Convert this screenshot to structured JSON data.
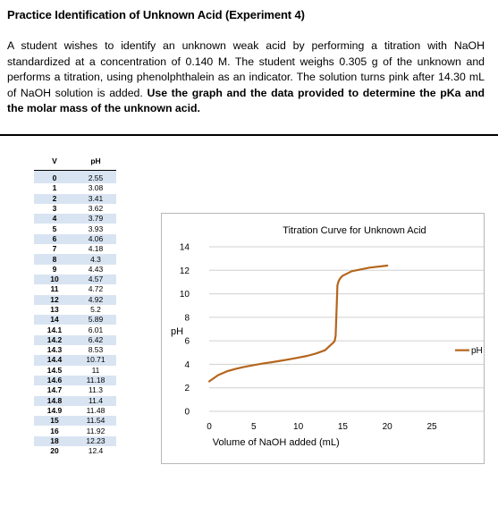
{
  "header": {
    "title": "Practice Identification of Unknown Acid (Experiment 4)"
  },
  "problem": {
    "text": "A student wishes to identify an unknown weak acid by performing a titration with NaOH standardized at a concentration of 0.140 M. The student weighs 0.305 g of the unknown and performs a titration, using phenolphthalein as an indicator. The solution turns pink after 14.30 mL of NaOH solution is added.",
    "emphasis": "Use the graph and the data provided to determine the pKa and the molar mass of the unknown acid."
  },
  "table": {
    "headers": [
      "V",
      "pH"
    ],
    "rows": [
      [
        "0",
        "2.55"
      ],
      [
        "1",
        "3.08"
      ],
      [
        "2",
        "3.41"
      ],
      [
        "3",
        "3.62"
      ],
      [
        "4",
        "3.79"
      ],
      [
        "5",
        "3.93"
      ],
      [
        "6",
        "4.06"
      ],
      [
        "7",
        "4.18"
      ],
      [
        "8",
        "4.3"
      ],
      [
        "9",
        "4.43"
      ],
      [
        "10",
        "4.57"
      ],
      [
        "11",
        "4.72"
      ],
      [
        "12",
        "4.92"
      ],
      [
        "13",
        "5.2"
      ],
      [
        "14",
        "5.89"
      ],
      [
        "14.1",
        "6.01"
      ],
      [
        "14.2",
        "6.42"
      ],
      [
        "14.3",
        "8.53"
      ],
      [
        "14.4",
        "10.71"
      ],
      [
        "14.5",
        "11"
      ],
      [
        "14.6",
        "11.18"
      ],
      [
        "14.7",
        "11.3"
      ],
      [
        "14.8",
        "11.4"
      ],
      [
        "14.9",
        "11.48"
      ],
      [
        "15",
        "11.54"
      ],
      [
        "16",
        "11.92"
      ],
      [
        "18",
        "12.23"
      ],
      [
        "20",
        "12.4"
      ]
    ]
  },
  "chart_data": {
    "type": "line",
    "title": "Titration Curve for Unknown Acid",
    "xlabel": "Volume of NaOH added (mL)",
    "ylabel": "pH",
    "xlim": [
      0,
      25
    ],
    "ylim": [
      0,
      14
    ],
    "xticks": [
      0,
      5,
      10,
      15,
      20,
      25
    ],
    "yticks": [
      0,
      2,
      4,
      6,
      8,
      10,
      12,
      14
    ],
    "grid": "horizontal",
    "legend": "right",
    "series": [
      {
        "name": "pH",
        "color": "#b5651d",
        "x": [
          0,
          1,
          2,
          3,
          4,
          5,
          6,
          7,
          8,
          9,
          10,
          11,
          12,
          13,
          14,
          14.1,
          14.2,
          14.3,
          14.4,
          14.5,
          14.6,
          14.7,
          14.8,
          14.9,
          15,
          16,
          18,
          20
        ],
        "y": [
          2.55,
          3.08,
          3.41,
          3.62,
          3.79,
          3.93,
          4.06,
          4.18,
          4.3,
          4.43,
          4.57,
          4.72,
          4.92,
          5.2,
          5.89,
          6.01,
          6.42,
          8.53,
          10.71,
          11,
          11.18,
          11.3,
          11.4,
          11.48,
          11.54,
          11.92,
          12.23,
          12.4
        ]
      }
    ]
  }
}
